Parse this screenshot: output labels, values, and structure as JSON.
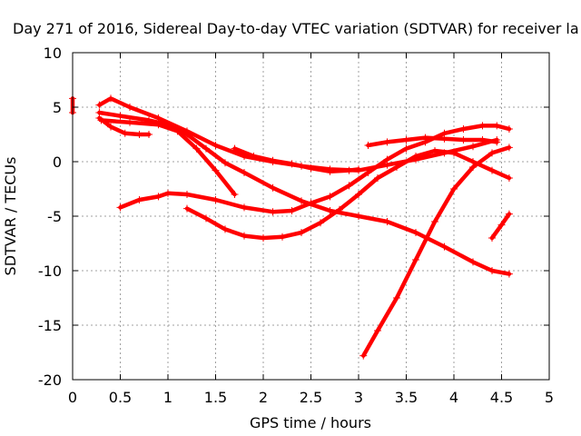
{
  "chart_data": {
    "type": "line",
    "title": "Day 271 of 2016, Sidereal Day-to-day VTEC variation (SDTVAR) for receiver la",
    "xlabel": "GPS time / hours",
    "ylabel": "SDTVAR / TECUs",
    "xlim": [
      0,
      5
    ],
    "ylim": [
      -20,
      10
    ],
    "xticks": [
      "0",
      "0.5",
      "1",
      "1.5",
      "2",
      "2.5",
      "3",
      "3.5",
      "4",
      "4.5",
      "5"
    ],
    "yticks": [
      "10",
      "5",
      "0",
      "-5",
      "-10",
      "-15",
      "-20"
    ],
    "grid": true,
    "legend": "none",
    "color": "#ff0000",
    "series": [
      {
        "x": [
          0.28,
          0.4,
          0.6,
          0.9,
          1.2,
          1.5,
          1.8,
          2.1,
          2.4,
          2.7,
          3.0,
          3.3,
          3.6,
          3.9,
          4.2,
          4.45
        ],
        "y": [
          5.2,
          5.8,
          5.0,
          4.0,
          2.8,
          1.5,
          0.5,
          0.0,
          -0.4,
          -0.7,
          -0.8,
          -0.3,
          0.2,
          0.8,
          1.4,
          2.0
        ]
      },
      {
        "x": [
          0.28,
          0.5,
          0.8,
          1.0,
          1.2,
          1.4,
          1.6,
          1.8,
          2.1,
          2.4,
          2.7,
          3.0,
          3.3,
          3.6,
          3.9,
          4.2,
          4.4,
          4.58
        ],
        "y": [
          4.5,
          4.2,
          3.8,
          3.4,
          2.5,
          1.2,
          -0.1,
          -1.0,
          -2.4,
          -3.6,
          -4.5,
          -5.0,
          -5.5,
          -6.5,
          -7.8,
          -9.2,
          -10.0,
          -10.3
        ]
      },
      {
        "x": [
          0.28,
          0.4,
          0.55,
          0.7,
          0.8
        ],
        "y": [
          4.0,
          3.2,
          2.6,
          2.5,
          2.5
        ]
      },
      {
        "x": [
          0.3,
          0.6,
          0.9,
          1.1,
          1.3,
          1.5,
          1.7
        ],
        "y": [
          3.8,
          3.6,
          3.4,
          2.8,
          1.2,
          -0.8,
          -3.0
        ]
      },
      {
        "x": [
          0.5,
          0.7,
          0.9,
          1.0,
          1.2,
          1.5,
          1.8,
          2.1,
          2.3,
          2.5,
          2.7,
          2.9,
          3.1,
          3.3,
          3.5,
          3.7,
          3.9,
          4.1,
          4.3,
          4.45,
          4.58
        ],
        "y": [
          -4.2,
          -3.5,
          -3.2,
          -2.9,
          -3.0,
          -3.5,
          -4.2,
          -4.6,
          -4.5,
          -3.8,
          -3.2,
          -2.2,
          -1.0,
          0.2,
          1.2,
          1.8,
          2.6,
          3.0,
          3.3,
          3.3,
          3.0
        ]
      },
      {
        "x": [
          1.2,
          1.4,
          1.6,
          1.8,
          2.0,
          2.2,
          2.4,
          2.6,
          2.8,
          3.0,
          3.2,
          3.4,
          3.6,
          3.8,
          4.0,
          4.2,
          4.4,
          4.58
        ],
        "y": [
          -4.3,
          -5.2,
          -6.2,
          -6.8,
          -7.0,
          -6.9,
          -6.5,
          -5.6,
          -4.4,
          -3.0,
          -1.5,
          -0.5,
          0.5,
          1.0,
          0.8,
          0.0,
          -0.8,
          -1.5
        ]
      },
      {
        "x": [
          1.7,
          1.9,
          2.1,
          2.3,
          2.5,
          2.7,
          2.9,
          3.0
        ],
        "y": [
          1.2,
          0.5,
          0.1,
          -0.2,
          -0.6,
          -0.9,
          -0.8,
          -0.7
        ]
      },
      {
        "x": [
          3.1,
          3.3,
          3.5,
          3.7,
          3.9,
          4.1,
          4.3,
          4.45
        ],
        "y": [
          1.5,
          1.8,
          2.0,
          2.2,
          2.1,
          2.0,
          2.0,
          1.8
        ]
      },
      {
        "x": [
          3.05,
          3.2,
          3.4,
          3.6,
          3.8,
          4.0,
          4.2,
          4.4,
          4.58
        ],
        "y": [
          -17.8,
          -15.5,
          -12.5,
          -9.0,
          -5.5,
          -2.5,
          -0.5,
          0.8,
          1.3
        ]
      },
      {
        "x": [
          4.4,
          4.5,
          4.58
        ],
        "y": [
          -7.0,
          -5.8,
          -4.8
        ]
      },
      {
        "x": [
          0.0,
          0.0
        ],
        "y": [
          4.5,
          5.8
        ]
      }
    ]
  }
}
